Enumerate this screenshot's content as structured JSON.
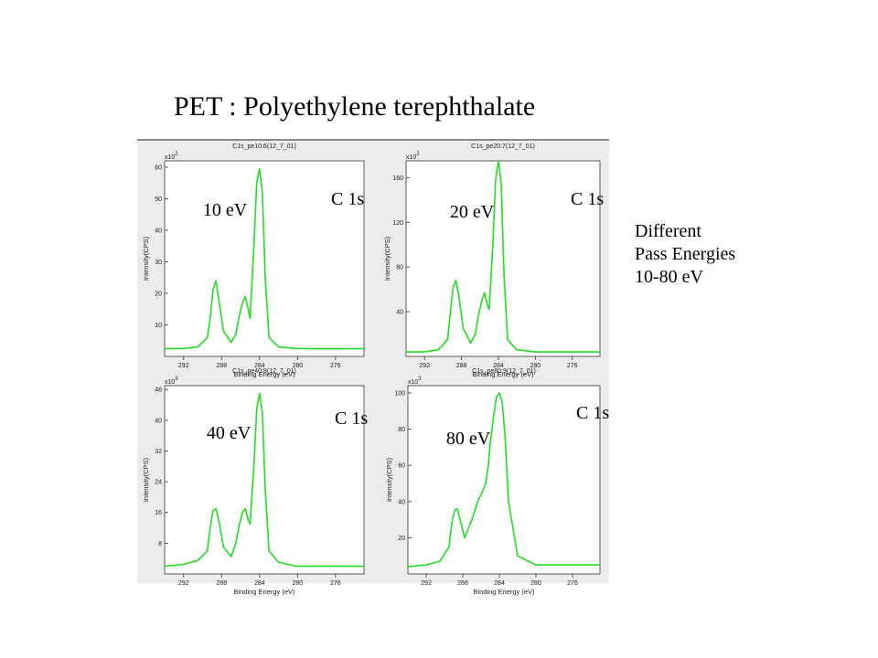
{
  "title": "PET : Polyethylene terephthalate",
  "note": [
    "Different",
    "Pass Energies",
    "10-80 eV"
  ],
  "colors": {
    "spectrum": "#22dd22",
    "background": "#ececec",
    "plot_bg": "#ffffff"
  },
  "chart_data": [
    {
      "type": "line",
      "panel_title": "C1s_pe10:6(12_7_01)",
      "multiplier": "x10^2",
      "mult_base": "x10",
      "mult_exp": "2",
      "pass_energy_label": "10 eV",
      "peak_label": "C 1s",
      "xlabel": "Binding Energy (eV)",
      "ylabel": "Intensity(CPS)",
      "xlim": [
        294,
        273
      ],
      "ylim": [
        0,
        62
      ],
      "xticks": [
        292,
        288,
        284,
        280,
        276
      ],
      "yticks": [
        10,
        20,
        30,
        40,
        50,
        60
      ],
      "x": [
        294,
        292,
        290.5,
        289.5,
        289.2,
        288.9,
        288.6,
        288.3,
        287.8,
        287,
        286.5,
        286.2,
        285.8,
        285.5,
        285.2,
        285,
        284.6,
        284.3,
        284,
        283.7,
        283.4,
        283,
        282,
        280,
        277,
        273
      ],
      "y": [
        2.5,
        2.5,
        3,
        6,
        12,
        21,
        24,
        18,
        8,
        4.5,
        7,
        12,
        17,
        19,
        15,
        12,
        35,
        55,
        59.5,
        52,
        25,
        6,
        3,
        2.5,
        2.5,
        2.5
      ]
    },
    {
      "type": "line",
      "panel_title": "C1s_pe20:7(12_7_01)",
      "multiplier": "x10^2",
      "mult_base": "x10",
      "mult_exp": "2",
      "pass_energy_label": "20 eV",
      "peak_label": "C 1s",
      "xlabel": "Binding Energy (eV)",
      "ylabel": "Intensity(CPS)",
      "xlim": [
        294,
        273
      ],
      "ylim": [
        0,
        175
      ],
      "xticks": [
        292,
        288,
        284,
        280,
        276
      ],
      "yticks": [
        40,
        80,
        120,
        160
      ],
      "x": [
        294,
        292,
        290.5,
        289.5,
        289.2,
        288.9,
        288.6,
        288.3,
        287.8,
        287,
        286.5,
        286.2,
        285.8,
        285.5,
        285.2,
        285,
        284.6,
        284.3,
        284,
        283.7,
        283.4,
        283,
        282,
        280,
        277,
        273
      ],
      "y": [
        4,
        4,
        6,
        15,
        40,
        62,
        68,
        55,
        25,
        12,
        20,
        35,
        50,
        57,
        46,
        42,
        100,
        158,
        175,
        155,
        75,
        15,
        6,
        4,
        4,
        4
      ]
    },
    {
      "type": "line",
      "panel_title": "C1s_pe40:8(12_7_01)",
      "multiplier": "x10^3",
      "mult_base": "x10",
      "mult_exp": "3",
      "pass_energy_label": "40 eV",
      "peak_label": "C 1s",
      "xlabel": "Binding Energy (eV)",
      "ylabel": "Intensity(CPS)",
      "xlim": [
        294,
        273
      ],
      "ylim": [
        0,
        49
      ],
      "xticks": [
        292,
        288,
        284,
        280,
        276
      ],
      "yticks": [
        8,
        16,
        24,
        32,
        40,
        48
      ],
      "x": [
        294,
        292,
        290.5,
        289.5,
        289.2,
        288.9,
        288.6,
        288.3,
        287.8,
        287,
        286.5,
        286.2,
        285.8,
        285.5,
        285.2,
        285,
        284.6,
        284.3,
        284,
        283.7,
        283.4,
        283,
        282,
        280,
        277,
        273
      ],
      "y": [
        2,
        2.5,
        3.5,
        6,
        12,
        16.5,
        17,
        14,
        7,
        4.5,
        8,
        12,
        16,
        17,
        14,
        13,
        28,
        43,
        47,
        42,
        22,
        6,
        3,
        2,
        2,
        2
      ]
    },
    {
      "type": "line",
      "panel_title": "C1s_pe80:9(12_7_01)",
      "multiplier": "x10^3",
      "mult_base": "x10",
      "mult_exp": "3",
      "pass_energy_label": "80 eV",
      "peak_label": "C 1s",
      "xlabel": "Binding Energy (eV)",
      "ylabel": "Intensity(CPS)",
      "xlim": [
        294,
        273
      ],
      "ylim": [
        0,
        104
      ],
      "xticks": [
        292,
        288,
        284,
        280,
        276
      ],
      "yticks": [
        20,
        40,
        60,
        80,
        100
      ],
      "x": [
        294,
        292,
        290.5,
        289.5,
        289.2,
        288.9,
        288.6,
        288.3,
        287.8,
        287,
        286.5,
        286.2,
        285.8,
        285.5,
        285.2,
        285,
        284.6,
        284.3,
        284,
        283.7,
        283.4,
        283,
        282,
        280,
        277,
        273
      ],
      "y": [
        4,
        5,
        7,
        15,
        28,
        35,
        36,
        30,
        20,
        30,
        38,
        42,
        46,
        50,
        60,
        72,
        88,
        98,
        100,
        95,
        78,
        40,
        10,
        5,
        5,
        5
      ]
    }
  ]
}
